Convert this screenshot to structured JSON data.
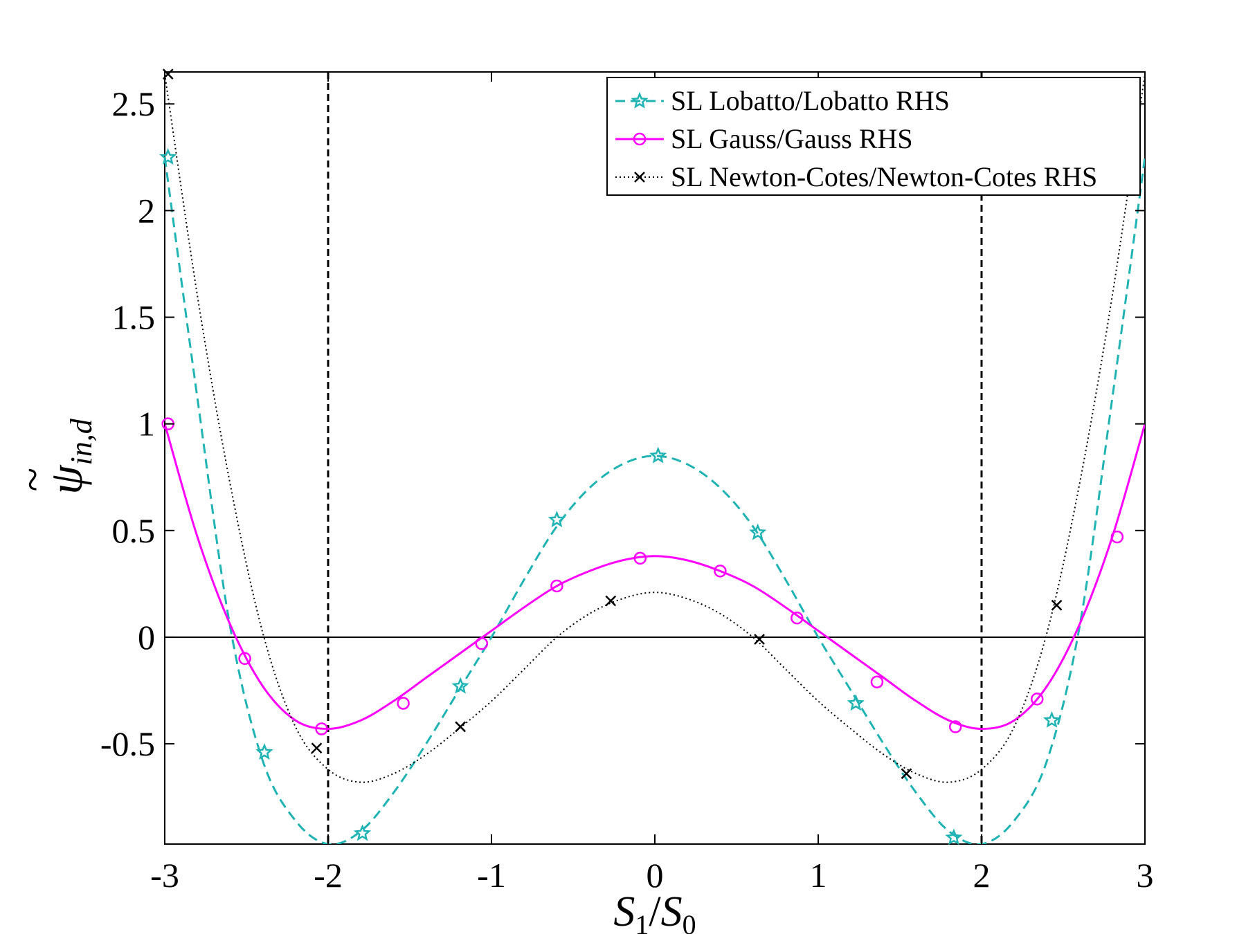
{
  "chart_data": {
    "type": "line",
    "title": "",
    "xlabel": {
      "base": "S",
      "sub1": "1",
      "sep": "/",
      "base2": "S",
      "sub2": "0"
    },
    "ylabel": {
      "base": "ψ",
      "accent": "~",
      "sub": "in,d"
    },
    "xlim": [
      -3,
      3
    ],
    "ylim": [
      -0.97,
      2.65
    ],
    "xticks": [
      -3,
      -2,
      -1,
      0,
      1,
      2,
      3
    ],
    "xtick_labels": [
      "-3",
      "-2",
      "-1",
      "0",
      "1",
      "2",
      "3"
    ],
    "yticks": [
      -0.5,
      0,
      0.5,
      1,
      1.5,
      2,
      2.5
    ],
    "ytick_labels": [
      "-0.5",
      "0",
      "0.5",
      "1",
      "1.5",
      "2",
      "2.5"
    ],
    "grid": false,
    "legend_position": "top-right",
    "vertical_lines": [
      -2,
      2
    ],
    "horizontal_lines": [
      0
    ],
    "series": [
      {
        "name": "SL Lobatto/Lobatto RHS",
        "color": "#1fb3b3",
        "line_style": "dashed",
        "marker": "star",
        "x": [
          -3.0,
          -2.8,
          -2.6,
          -2.4,
          -2.2,
          -2.0,
          -1.8,
          -1.6,
          -1.4,
          -1.2,
          -1.0,
          -0.8,
          -0.6,
          -0.4,
          -0.2,
          0.0,
          0.2,
          0.4,
          0.6,
          0.8,
          1.0,
          1.2,
          1.4,
          1.6,
          1.8,
          2.0,
          2.2,
          2.4,
          2.6,
          2.8,
          3.0
        ],
        "y": [
          2.25,
          1.12,
          0.05,
          -0.58,
          -0.86,
          -0.97,
          -0.91,
          -0.73,
          -0.5,
          -0.25,
          0.0,
          0.27,
          0.52,
          0.7,
          0.81,
          0.85,
          0.81,
          0.7,
          0.52,
          0.27,
          0.0,
          -0.25,
          -0.5,
          -0.73,
          -0.91,
          -0.97,
          -0.86,
          -0.58,
          0.05,
          1.12,
          2.25
        ],
        "markers_x": [
          -2.98,
          -2.39,
          -1.79,
          -1.19,
          -0.6,
          0.02,
          0.63,
          1.23,
          1.83,
          2.43
        ],
        "markers_y": [
          2.25,
          -0.54,
          -0.92,
          -0.23,
          0.55,
          0.85,
          0.49,
          -0.31,
          -0.94,
          -0.39
        ]
      },
      {
        "name": "SL Gauss/Gauss RHS",
        "color": "#ff00ff",
        "line_style": "solid",
        "marker": "circle",
        "x": [
          -3.0,
          -2.8,
          -2.6,
          -2.4,
          -2.2,
          -2.0,
          -1.8,
          -1.6,
          -1.4,
          -1.2,
          -1.0,
          -0.8,
          -0.6,
          -0.4,
          -0.2,
          0.0,
          0.2,
          0.4,
          0.6,
          0.8,
          1.0,
          1.2,
          1.4,
          1.6,
          1.8,
          2.0,
          2.2,
          2.4,
          2.6,
          2.8,
          3.0
        ],
        "y": [
          1.0,
          0.47,
          0.06,
          -0.23,
          -0.39,
          -0.43,
          -0.39,
          -0.3,
          -0.19,
          -0.08,
          0.03,
          0.14,
          0.24,
          0.31,
          0.36,
          0.38,
          0.36,
          0.31,
          0.24,
          0.14,
          0.03,
          -0.08,
          -0.19,
          -0.3,
          -0.39,
          -0.43,
          -0.39,
          -0.23,
          0.06,
          0.47,
          1.0
        ],
        "markers_x": [
          -2.98,
          -2.51,
          -2.04,
          -1.54,
          -1.06,
          -0.6,
          -0.09,
          0.4,
          0.87,
          1.36,
          1.84,
          2.34,
          2.83
        ],
        "markers_y": [
          1.0,
          -0.1,
          -0.43,
          -0.31,
          -0.03,
          0.24,
          0.37,
          0.31,
          0.09,
          -0.21,
          -0.42,
          -0.29,
          0.47
        ]
      },
      {
        "name": "SL Newton-Cotes/Newton-Cotes RHS",
        "color": "#000000",
        "line_style": "dotted",
        "marker": "x",
        "x": [
          -3.0,
          -2.8,
          -2.6,
          -2.4,
          -2.2,
          -2.0,
          -1.8,
          -1.6,
          -1.4,
          -1.2,
          -1.0,
          -0.8,
          -0.6,
          -0.4,
          -0.2,
          0.0,
          0.2,
          0.4,
          0.6,
          0.8,
          1.0,
          1.2,
          1.4,
          1.6,
          1.8,
          2.0,
          2.2,
          2.4,
          2.6,
          2.8,
          3.0
        ],
        "y": [
          2.64,
          1.6,
          0.72,
          0.02,
          -0.42,
          -0.62,
          -0.68,
          -0.64,
          -0.55,
          -0.43,
          -0.3,
          -0.15,
          0.0,
          0.11,
          0.18,
          0.21,
          0.18,
          0.11,
          0.0,
          -0.15,
          -0.3,
          -0.43,
          -0.55,
          -0.64,
          -0.68,
          -0.62,
          -0.42,
          0.02,
          0.72,
          1.6,
          2.64
        ],
        "markers_x": [
          -2.98,
          -2.07,
          -1.19,
          -0.27,
          0.64,
          1.54,
          2.46
        ],
        "markers_y": [
          2.64,
          -0.52,
          -0.42,
          0.17,
          -0.01,
          -0.64,
          0.15
        ]
      }
    ]
  }
}
